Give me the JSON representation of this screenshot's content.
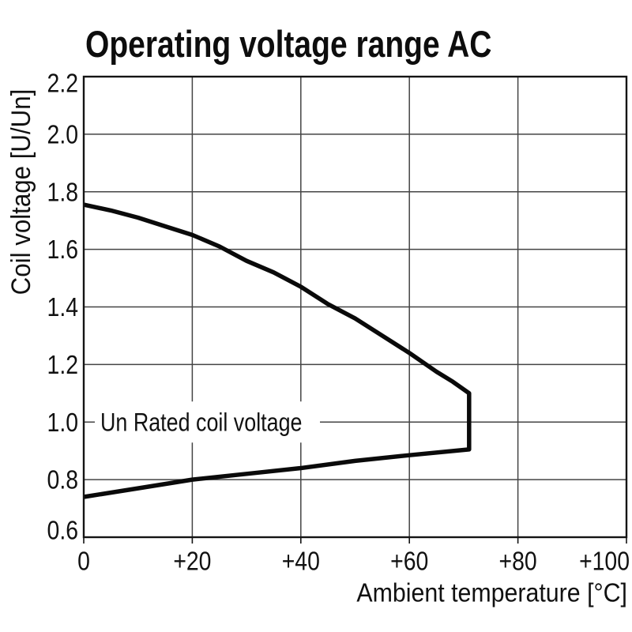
{
  "chart_data": {
    "type": "line",
    "title": "Operating voltage range AC",
    "xlabel": "Ambient temperature [°C]",
    "ylabel": "Coil voltage [U/Un]",
    "xlim": [
      0,
      100
    ],
    "ylim": [
      0.6,
      2.2
    ],
    "grid": true,
    "legend": "none",
    "x_ticks": [
      {
        "value": 0,
        "label": "0"
      },
      {
        "value": 20,
        "label": "+20"
      },
      {
        "value": 40,
        "label": "+40"
      },
      {
        "value": 60,
        "label": "+60"
      },
      {
        "value": 80,
        "label": "+80"
      },
      {
        "value": 100,
        "label": "+100"
      }
    ],
    "y_ticks": [
      {
        "value": 0.6,
        "label": "0.6"
      },
      {
        "value": 0.8,
        "label": "0.8"
      },
      {
        "value": 1.0,
        "label": "1.0"
      },
      {
        "value": 1.2,
        "label": "1.2"
      },
      {
        "value": 1.4,
        "label": "1.4"
      },
      {
        "value": 1.6,
        "label": "1.6"
      },
      {
        "value": 1.8,
        "label": "1.8"
      },
      {
        "value": 2.0,
        "label": "2.0"
      },
      {
        "value": 2.2,
        "label": "2.2"
      }
    ],
    "annotation": {
      "text": "Un Rated coil voltage",
      "x": 3,
      "y": 1.0
    },
    "series": [
      {
        "name": "operating-voltage-range-boundary",
        "description": "Closed boundary of permissible AC coil operating voltage vs ambient temperature: upper limit curve, vertical cutoff at max temperature, lower limit curve",
        "points": [
          [
            0,
            1.755
          ],
          [
            5,
            1.735
          ],
          [
            10,
            1.71
          ],
          [
            15,
            1.68
          ],
          [
            20,
            1.65
          ],
          [
            25,
            1.61
          ],
          [
            30,
            1.56
          ],
          [
            35,
            1.52
          ],
          [
            40,
            1.47
          ],
          [
            45,
            1.41
          ],
          [
            50,
            1.36
          ],
          [
            55,
            1.3
          ],
          [
            60,
            1.24
          ],
          [
            65,
            1.175
          ],
          [
            68,
            1.14
          ],
          [
            71,
            1.1
          ],
          [
            71,
            0.905
          ],
          [
            60,
            0.885
          ],
          [
            50,
            0.865
          ],
          [
            40,
            0.84
          ],
          [
            30,
            0.82
          ],
          [
            20,
            0.8
          ],
          [
            10,
            0.77
          ],
          [
            0,
            0.74
          ]
        ]
      }
    ],
    "colors": {
      "curve": "#0a0a0a",
      "grid": "#444444",
      "axis": "#141414",
      "text": "#111111",
      "background": "#ffffff"
    }
  }
}
